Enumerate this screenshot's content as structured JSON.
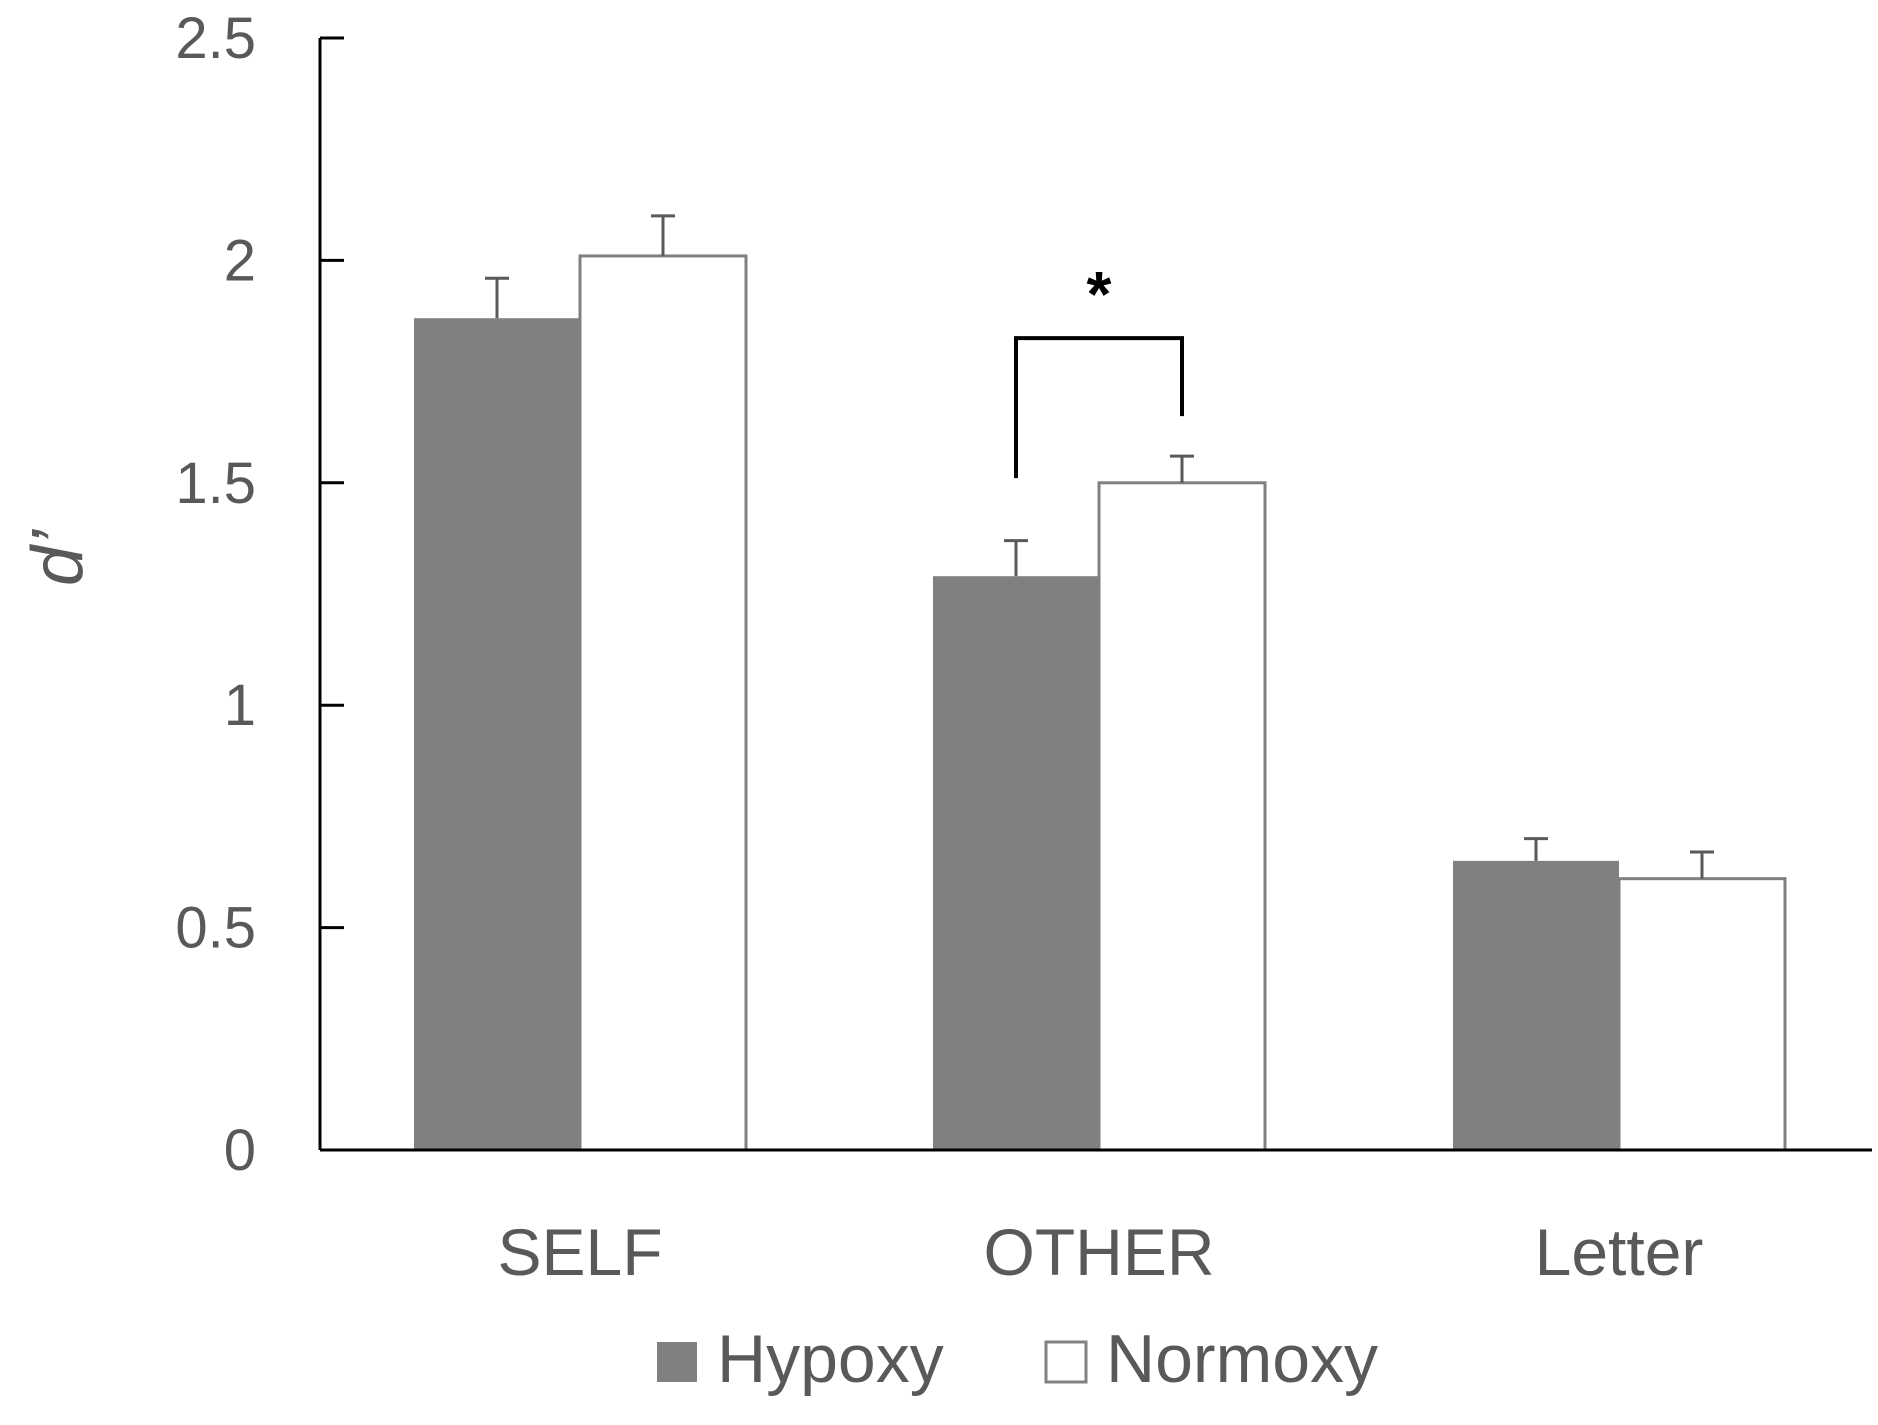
{
  "chart_data": {
    "type": "bar",
    "categories": [
      "SELF",
      "OTHER",
      "Letter"
    ],
    "series": [
      {
        "name": "Hypoxy",
        "values": [
          1.87,
          1.29,
          0.65
        ],
        "errors": [
          0.09,
          0.08,
          0.05
        ],
        "color": "#808080"
      },
      {
        "name": "Normoxy",
        "values": [
          2.01,
          1.5,
          0.61
        ],
        "errors": [
          0.09,
          0.06,
          0.06
        ],
        "color": "#ffffff"
      }
    ],
    "ylabel": "d’",
    "ylim": [
      0,
      2.5
    ],
    "yticks": [
      0,
      0.5,
      1,
      1.5,
      2,
      2.5
    ],
    "ytick_labels": [
      "0",
      "0.5",
      "1",
      "1.5",
      "2",
      "2.5"
    ],
    "grid": false,
    "legend_position": "bottom-center",
    "annotations": [
      {
        "type": "significance",
        "category": "OTHER",
        "text": "*"
      }
    ],
    "colors": {
      "axis": "#000000",
      "text": "#595959",
      "bar_outline": "#808080",
      "errorbar": "#595959",
      "bracket": "#000000"
    }
  }
}
